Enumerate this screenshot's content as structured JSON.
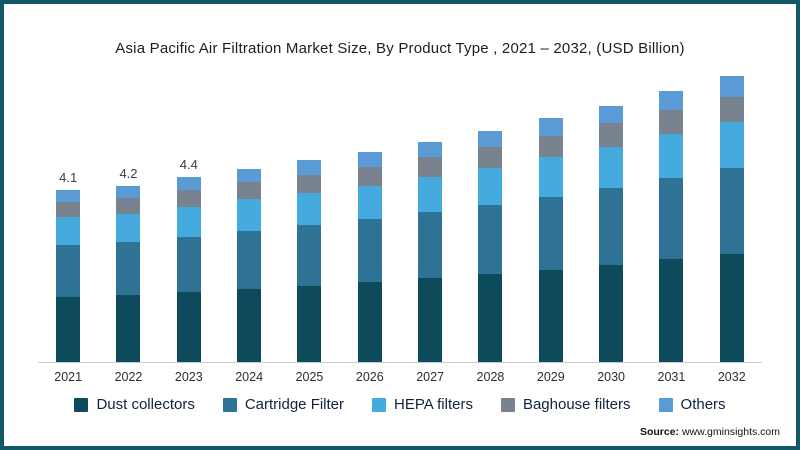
{
  "source": {
    "label": "Source:",
    "url": "www.gminsights.com"
  },
  "chart_data": {
    "type": "bar",
    "stacked": true,
    "title": "Asia Pacific Air Filtration Market Size, By Product Type , 2021 – 2032, (USD Billion)",
    "xlabel": "",
    "ylabel": "USD Billion",
    "ylim": [
      0,
      7
    ],
    "grid": false,
    "legend_position": "bottom",
    "categories": [
      "2021",
      "2022",
      "2023",
      "2024",
      "2025",
      "2026",
      "2027",
      "2028",
      "2029",
      "2030",
      "2031",
      "2032"
    ],
    "value_labels": [
      "4.1",
      "4.2",
      "4.4",
      "",
      "",
      "",
      "",
      "",
      "",
      "",
      "",
      ""
    ],
    "series": [
      {
        "name": "Dust collectors",
        "color": "#0d4a5c",
        "values": [
          1.56,
          1.6,
          1.67,
          1.75,
          1.82,
          1.9,
          2.0,
          2.09,
          2.2,
          2.32,
          2.45,
          2.58
        ]
      },
      {
        "name": "Cartridge Filter",
        "color": "#2e7396",
        "values": [
          1.23,
          1.26,
          1.32,
          1.38,
          1.44,
          1.5,
          1.57,
          1.65,
          1.74,
          1.83,
          1.94,
          2.04
        ]
      },
      {
        "name": "HEPA filters",
        "color": "#45aadd",
        "values": [
          0.66,
          0.67,
          0.7,
          0.74,
          0.77,
          0.8,
          0.84,
          0.88,
          0.93,
          0.98,
          1.03,
          1.09
        ]
      },
      {
        "name": "Baghouse filters",
        "color": "#78838f",
        "values": [
          0.37,
          0.38,
          0.4,
          0.41,
          0.43,
          0.45,
          0.47,
          0.5,
          0.52,
          0.55,
          0.58,
          0.61
        ]
      },
      {
        "name": "Others",
        "color": "#5b9bd5",
        "values": [
          0.28,
          0.29,
          0.31,
          0.32,
          0.34,
          0.35,
          0.37,
          0.38,
          0.41,
          0.42,
          0.45,
          0.48
        ]
      }
    ],
    "frame_color": "#13566a"
  }
}
